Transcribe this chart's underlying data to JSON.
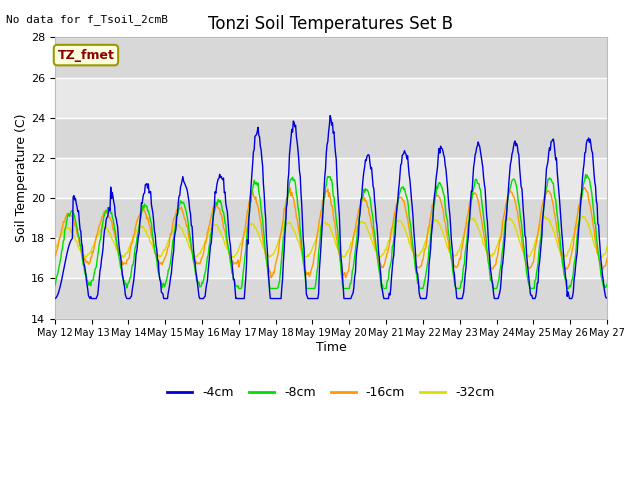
{
  "title": "Tonzi Soil Temperatures Set B",
  "xlabel": "Time",
  "ylabel": "Soil Temperature (C)",
  "no_data_label": "No data for f_Tsoil_2cmB",
  "annotation_label": "TZ_fmet",
  "ylim": [
    14,
    28
  ],
  "yticks": [
    14,
    16,
    18,
    20,
    22,
    24,
    26,
    28
  ],
  "colors": {
    "4cm": "#0000dd",
    "8cm": "#00dd00",
    "16cm": "#ff9900",
    "32cm": "#dddd00"
  },
  "legend_labels": [
    "-4cm",
    "-8cm",
    "-16cm",
    "-32cm"
  ],
  "band_colors": [
    "#d8d8d8",
    "#e8e8e8"
  ],
  "grid_color": "white"
}
